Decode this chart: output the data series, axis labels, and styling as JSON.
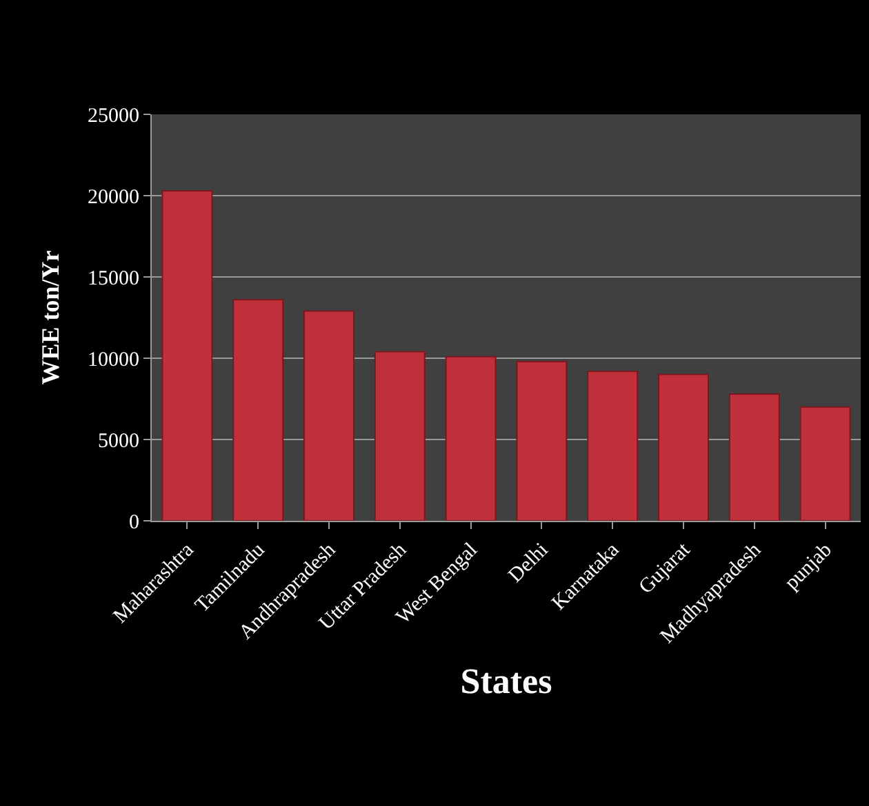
{
  "chart_data": {
    "type": "bar",
    "xlabel": "States",
    "ylabel": "WEE ton/Yr",
    "categories": [
      "Maharashtra",
      "Tamilnadu",
      "Andhrapradesh",
      "Uttar Pradesh",
      "West Bengal",
      "Delhi",
      "Karnataka",
      "Gujarat",
      "Madhyapradesh",
      "punjab"
    ],
    "values": [
      20300,
      13600,
      12900,
      10400,
      10100,
      9800,
      9200,
      9000,
      7800,
      7000
    ],
    "color": "#c0303a",
    "ylim": [
      0,
      25000
    ],
    "yticks": [
      0,
      5000,
      10000,
      15000,
      20000,
      25000
    ],
    "grid": "y",
    "legend": false
  }
}
